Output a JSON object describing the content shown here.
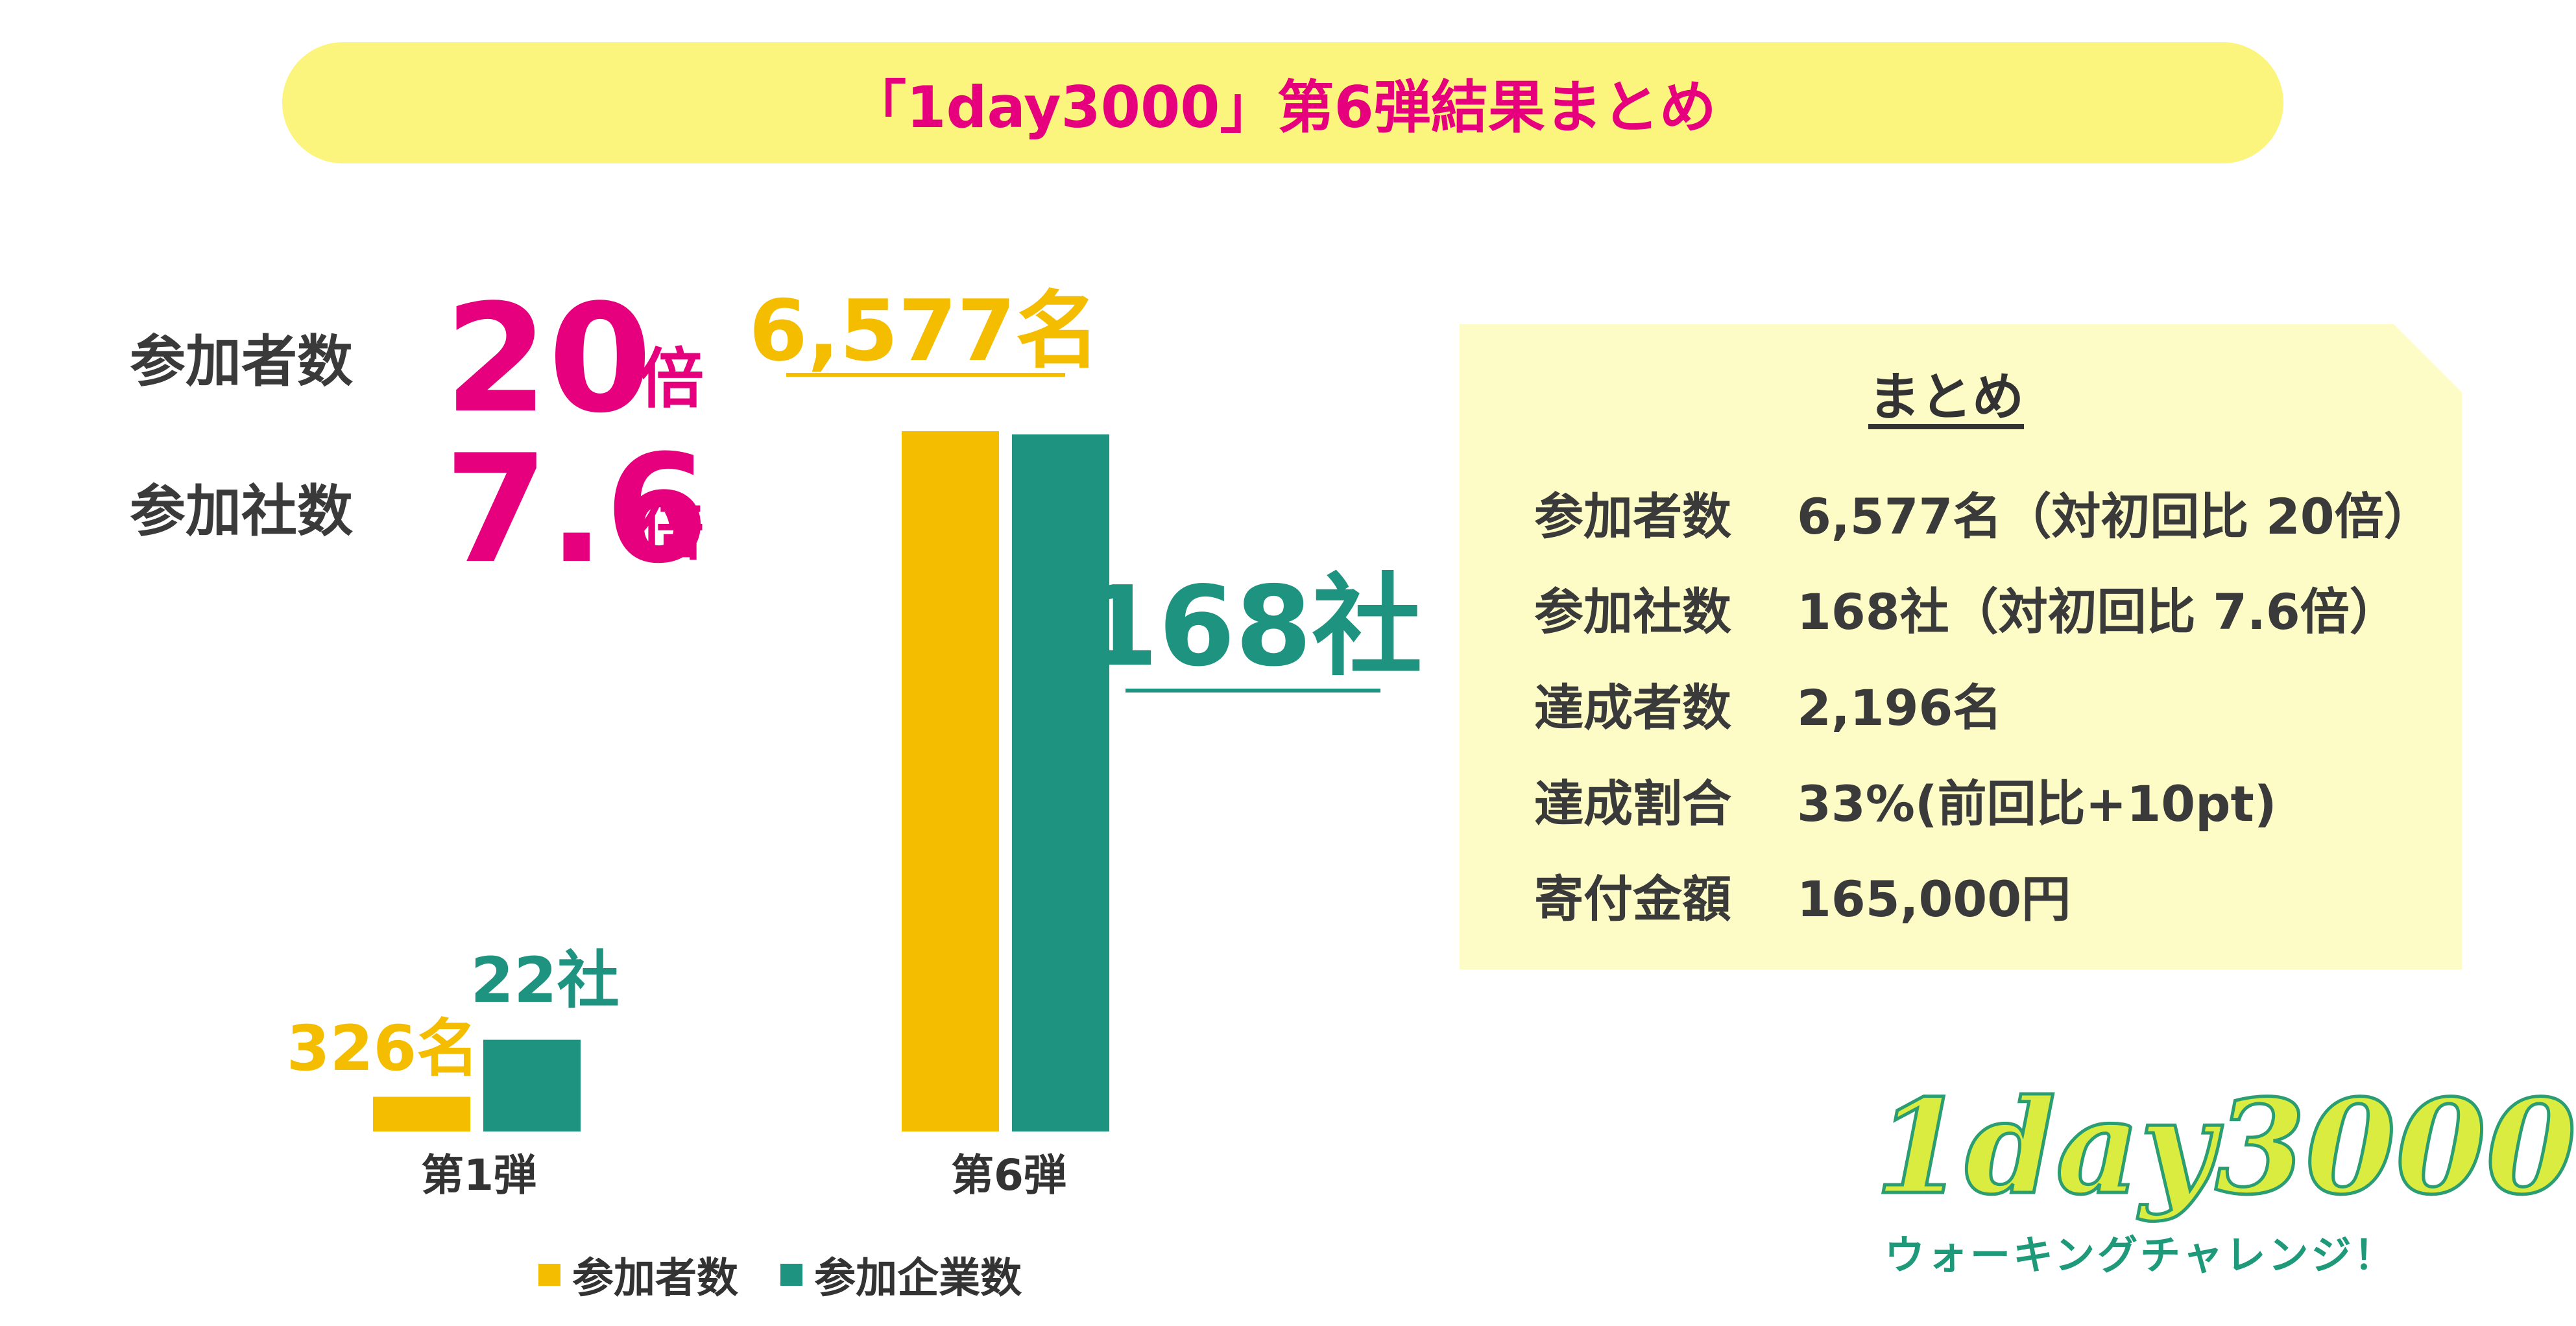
{
  "title": "「1day3000」第6弾結果まとめ",
  "stats": {
    "participants": {
      "label": "参加者数",
      "value": "20",
      "unit": "倍"
    },
    "companies": {
      "label": "参加社数",
      "value": "7.6",
      "unit": "倍"
    }
  },
  "summary": {
    "heading": "まとめ",
    "rows": [
      {
        "key": "参加者数",
        "value": "6,577名（対初回比 20倍）"
      },
      {
        "key": "参加社数",
        "value": "168社（対初回比 7.6倍）"
      },
      {
        "key": "達成者数",
        "value": "2,196名"
      },
      {
        "key": "達成割合",
        "value": "33%(前回比+10pt)"
      },
      {
        "key": "寄付金額",
        "value": "165,000円"
      }
    ]
  },
  "logo": {
    "main": "1day3000",
    "sub": "ウォーキングチャレンジ！"
  },
  "colors": {
    "participants": "#f5bd00",
    "companies": "#1e9480",
    "accent": "#e6007e",
    "title_bg": "#fbf57d",
    "panel_bg": "#fdfbc6"
  },
  "chart_data": {
    "type": "bar",
    "categories": [
      "第1弾",
      "第6弾"
    ],
    "series": [
      {
        "name": "参加者数",
        "values": [
          326,
          6577
        ],
        "labels": [
          "326名",
          "6,577名"
        ],
        "color": "#f5bd00"
      },
      {
        "name": "参加企業数",
        "values": [
          22,
          168
        ],
        "labels": [
          "22社",
          "168社"
        ],
        "color": "#1e9480"
      }
    ],
    "legend": "bottom",
    "grid": false
  }
}
